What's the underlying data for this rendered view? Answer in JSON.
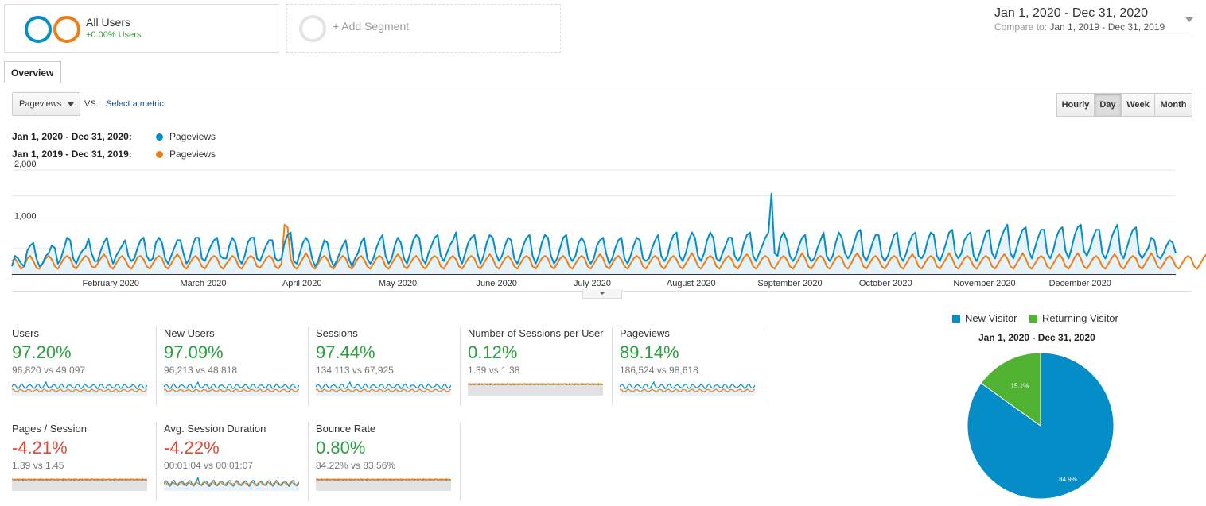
{
  "segments": {
    "all_users": {
      "title": "All Users",
      "subtitle": "+0.00% Users"
    },
    "add_segment": {
      "label": "+ Add Segment"
    }
  },
  "date_range": {
    "main": "Jan 1, 2020 - Dec 31, 2020",
    "compare_label": "Compare to:",
    "compare_range": "Jan 1, 2019 - Dec 31, 2019"
  },
  "tabs": [
    {
      "label": "Overview"
    }
  ],
  "controls": {
    "metric": "Pageviews",
    "vs": "VS.",
    "select_metric": "Select a metric",
    "granularity": [
      {
        "label": "Hourly",
        "active": false
      },
      {
        "label": "Day",
        "active": true
      },
      {
        "label": "Week",
        "active": false
      },
      {
        "label": "Month",
        "active": false
      }
    ]
  },
  "colors": {
    "current": "#058dc7",
    "previous": "#ed7e17",
    "new_visitor": "#058dc7",
    "returning_visitor": "#50b432"
  },
  "chart_data": [
    {
      "type": "line",
      "title": "",
      "legend": [
        {
          "range": "Jan 1, 2020 - Dec 31, 2020:",
          "name": "Pageviews",
          "color": "#058dc7"
        },
        {
          "range": "Jan 1, 2019 - Dec 31, 2019:",
          "name": "Pageviews",
          "color": "#ed7e17"
        }
      ],
      "y_ticks": [
        "2,000",
        "1,000"
      ],
      "ylim": [
        0,
        2000
      ],
      "x_ticks": [
        "February 2020",
        "March 2020",
        "April 2020",
        "May 2020",
        "June 2020",
        "July 2020",
        "August 2020",
        "September 2020",
        "October 2020",
        "November 2020",
        "December 2020"
      ],
      "grid": true,
      "series": [
        {
          "name": "Pageviews",
          "period": "2020",
          "values": [
            150,
            350,
            300,
            200,
            150,
            450,
            550,
            600,
            300,
            150,
            200,
            350,
            400,
            550,
            500,
            200,
            300,
            500,
            700,
            650,
            300,
            200,
            350,
            450,
            500,
            680,
            400,
            250,
            250,
            450,
            600,
            700,
            400,
            200,
            350,
            450,
            550,
            650,
            350,
            250,
            300,
            500,
            650,
            700,
            350,
            250,
            300,
            600,
            700,
            600,
            300,
            200,
            350,
            500,
            650,
            650,
            400,
            200,
            300,
            550,
            700,
            700,
            300,
            250,
            400,
            550,
            650,
            700,
            350,
            300,
            300,
            550,
            700,
            600,
            300,
            200,
            350,
            600,
            700,
            700,
            300,
            250,
            400,
            550,
            650,
            650,
            300,
            250,
            300,
            600,
            750,
            800,
            250,
            200,
            400,
            600,
            700,
            600,
            300,
            150,
            250,
            450,
            650,
            600,
            300,
            150,
            250,
            400,
            550,
            650,
            300,
            150,
            300,
            400,
            600,
            700,
            300,
            200,
            300,
            500,
            650,
            750,
            350,
            200,
            300,
            550,
            700,
            600,
            300,
            200,
            400,
            650,
            750,
            700,
            300,
            200,
            400,
            550,
            700,
            750,
            350,
            250,
            400,
            550,
            650,
            800,
            350,
            200,
            400,
            600,
            700,
            750,
            400,
            200,
            350,
            600,
            750,
            700,
            400,
            250,
            350,
            550,
            700,
            650,
            300,
            200,
            350,
            550,
            700,
            750,
            350,
            200,
            350,
            600,
            750,
            700,
            350,
            200,
            300,
            500,
            700,
            750,
            350,
            250,
            350,
            600,
            700,
            600,
            300,
            200,
            300,
            550,
            650,
            700,
            400,
            200,
            300,
            500,
            650,
            700,
            300,
            200,
            350,
            550,
            700,
            650,
            300,
            250,
            300,
            500,
            650,
            750,
            350,
            250,
            350,
            600,
            750,
            800,
            350,
            250,
            400,
            650,
            800,
            700,
            350,
            250,
            400,
            650,
            800,
            700,
            300,
            250,
            400,
            550,
            700,
            700,
            350,
            250,
            350,
            600,
            750,
            800,
            350,
            250,
            400,
            550,
            700,
            800,
            1550,
            400,
            350,
            700,
            800,
            650,
            350,
            250,
            350,
            550,
            700,
            750,
            350,
            250,
            300,
            500,
            650,
            800,
            350,
            250,
            350,
            600,
            800,
            700,
            400,
            300,
            400,
            600,
            800,
            850,
            350,
            250,
            400,
            600,
            750,
            750,
            350,
            250,
            350,
            550,
            750,
            800,
            350,
            250,
            400,
            600,
            750,
            800,
            350,
            300,
            400,
            650,
            800,
            750,
            350,
            250,
            400,
            600,
            800,
            850,
            400,
            300,
            400,
            650,
            750,
            800,
            350,
            250,
            400,
            600,
            800,
            850,
            400,
            300,
            500,
            700,
            850,
            950,
            400,
            300,
            500,
            700,
            850,
            900,
            450,
            300,
            500,
            700,
            850,
            850,
            400,
            300,
            450,
            700,
            850,
            900,
            450,
            300,
            500,
            750,
            900,
            950,
            450,
            350,
            500,
            700,
            850,
            850,
            400,
            300,
            450,
            700,
            850,
            950,
            400,
            300,
            500,
            700,
            850,
            900,
            400,
            300,
            400,
            500,
            700,
            650,
            350,
            300,
            400,
            550,
            650,
            600,
            400
          ]
        },
        {
          "name": "Pageviews",
          "period": "2019",
          "values": [
            250,
            300,
            200,
            100,
            150,
            300,
            350,
            250,
            120,
            100,
            200,
            300,
            350,
            280,
            150,
            100,
            200,
            300,
            350,
            300,
            150,
            100,
            200,
            280,
            350,
            300,
            150,
            120,
            200,
            300,
            380,
            300,
            150,
            100,
            200,
            300,
            350,
            280,
            150,
            100,
            200,
            320,
            350,
            280,
            150,
            100,
            200,
            300,
            350,
            300,
            150,
            100,
            200,
            300,
            380,
            300,
            150,
            100,
            200,
            300,
            350,
            280,
            150,
            100,
            200,
            300,
            350,
            300,
            150,
            100,
            200,
            280,
            350,
            300,
            150,
            100,
            200,
            300,
            350,
            300,
            150,
            120,
            200,
            300,
            350,
            300,
            150,
            100,
            200,
            950,
            900,
            300,
            150,
            100,
            200,
            300,
            400,
            300,
            150,
            100,
            200,
            300,
            350,
            280,
            150,
            100,
            200,
            280,
            350,
            300,
            150,
            100,
            200,
            300,
            350,
            280,
            150,
            100,
            200,
            300,
            350,
            300,
            150,
            100,
            200,
            300,
            380,
            300,
            150,
            100,
            200,
            300,
            350,
            280,
            150,
            100,
            200,
            300,
            350,
            300,
            150,
            100,
            200,
            300,
            350,
            280,
            150,
            100,
            200,
            300,
            350,
            300,
            150,
            100,
            200,
            300,
            380,
            300,
            150,
            100,
            200,
            300,
            350,
            280,
            150,
            100,
            200,
            300,
            350,
            300,
            150,
            100,
            200,
            300,
            350,
            300,
            150,
            100,
            200,
            300,
            350,
            280,
            150,
            100,
            200,
            300,
            350,
            300,
            150,
            100,
            200,
            300,
            380,
            300,
            150,
            100,
            200,
            300,
            350,
            280,
            150,
            100,
            200,
            300,
            350,
            300,
            150,
            100,
            200,
            300,
            350,
            300,
            150,
            100,
            200,
            300,
            350,
            280,
            150,
            100,
            200,
            300,
            400,
            300,
            150,
            100,
            200,
            300,
            350,
            300,
            150,
            100,
            200,
            300,
            350,
            280,
            150,
            100,
            200,
            320,
            380,
            300,
            150,
            100,
            200,
            300,
            350,
            300,
            150,
            100,
            200,
            300,
            350,
            280,
            150,
            100,
            200,
            300,
            400,
            300,
            150,
            100,
            200,
            300,
            350,
            300,
            150,
            100,
            200,
            300,
            350,
            300,
            150,
            100,
            200,
            320,
            400,
            300,
            150,
            100,
            200,
            300,
            350,
            280,
            150,
            100,
            200,
            300,
            350,
            300,
            150,
            100,
            200,
            300,
            380,
            300,
            150,
            100,
            200,
            300,
            350,
            300,
            150,
            100,
            200,
            300,
            400,
            300,
            150,
            100,
            200,
            300,
            350,
            280,
            150,
            100,
            200,
            300,
            350,
            300,
            150,
            100,
            200,
            300,
            380,
            300,
            150,
            100,
            200,
            300,
            400,
            300,
            150,
            100,
            200,
            300,
            350,
            300,
            150,
            100,
            200,
            300,
            380,
            300,
            150,
            100,
            200,
            320,
            400,
            300,
            150,
            100,
            200,
            300,
            350,
            280,
            150,
            100,
            200,
            300,
            380,
            300,
            150,
            100,
            200,
            300,
            350,
            300,
            150,
            100,
            200,
            300,
            400,
            300,
            150,
            100,
            200,
            300,
            350,
            280,
            150,
            100,
            200,
            300,
            350,
            300,
            150,
            100,
            200,
            300,
            380,
            300,
            150,
            100,
            250,
            350,
            300,
            250,
            200,
            150,
            300,
            200,
            100
          ]
        }
      ]
    },
    {
      "type": "pie",
      "title": "Jan 1, 2020 - Dec 31, 2020",
      "legend": [
        "New Visitor",
        "Returning Visitor"
      ],
      "slices": [
        {
          "name": "New Visitor",
          "value": 84.9,
          "label": "84.9%",
          "color": "#058dc7"
        },
        {
          "name": "Returning Visitor",
          "value": 15.1,
          "label": "15.1%",
          "color": "#50b432"
        }
      ]
    }
  ],
  "scorecards": [
    {
      "title": "Users",
      "value": "97.20%",
      "trend": "up",
      "compare": "96,820 vs 49,097",
      "spark": "wave"
    },
    {
      "title": "New Users",
      "value": "97.09%",
      "trend": "up",
      "compare": "96,213 vs 48,818",
      "spark": "wave"
    },
    {
      "title": "Sessions",
      "value": "97.44%",
      "trend": "up",
      "compare": "134,113 vs 67,925",
      "spark": "wave"
    },
    {
      "title": "Number of Sessions per User",
      "value": "0.12%",
      "trend": "up",
      "compare": "1.39 vs 1.38",
      "spark": "flat"
    },
    {
      "title": "Pageviews",
      "value": "89.14%",
      "trend": "up",
      "compare": "186,524 vs 98,618",
      "spark": "wave"
    },
    {
      "title": "Pages / Session",
      "value": "-4.21%",
      "trend": "down",
      "compare": "1.39 vs 1.45",
      "spark": "flat"
    },
    {
      "title": "Avg. Session Duration",
      "value": "-4.22%",
      "trend": "down",
      "compare": "00:01:04 vs 00:01:07",
      "spark": "noisy"
    },
    {
      "title": "Bounce Rate",
      "value": "0.80%",
      "trend": "up",
      "compare": "84.22% vs 83.56%",
      "spark": "flat"
    }
  ]
}
